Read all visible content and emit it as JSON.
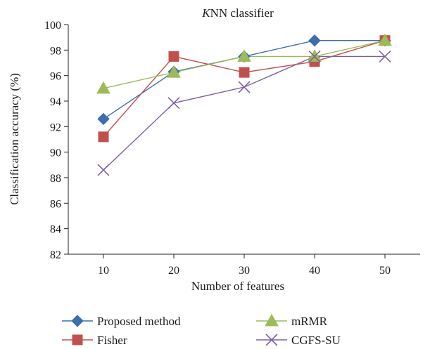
{
  "chart_data": {
    "type": "line",
    "title_italic": "K",
    "title_rest": "NN classifier",
    "xlabel": "Number of features",
    "ylabel": "Classification accuracy (%)",
    "x": [
      10,
      20,
      30,
      40,
      50
    ],
    "x_tick_labels": [
      "10",
      "20",
      "30",
      "40",
      "50"
    ],
    "ylim": [
      82,
      100
    ],
    "y_ticks": [
      82,
      84,
      86,
      88,
      90,
      92,
      94,
      96,
      98,
      100
    ],
    "y_tick_labels": [
      "82",
      "84",
      "86",
      "88",
      "90",
      "92",
      "94",
      "96",
      "98",
      "100"
    ],
    "grid": false,
    "legend_position": "bottom",
    "series": [
      {
        "name": "Proposed method",
        "values": [
          92.6,
          96.3,
          97.5,
          98.75,
          98.75
        ],
        "color": "#3c6eaa",
        "marker": "diamond"
      },
      {
        "name": "Fisher",
        "values": [
          91.2,
          97.5,
          96.25,
          97.1,
          98.75
        ],
        "color": "#c0504d",
        "marker": "square"
      },
      {
        "name": "mRMR",
        "values": [
          95.0,
          96.25,
          97.5,
          97.5,
          98.75
        ],
        "color": "#9bbb59",
        "marker": "triangle"
      },
      {
        "name": "CGFS-SU",
        "values": [
          88.6,
          93.85,
          95.1,
          97.5,
          97.5
        ],
        "color": "#7e5f9e",
        "marker": "x"
      }
    ]
  }
}
